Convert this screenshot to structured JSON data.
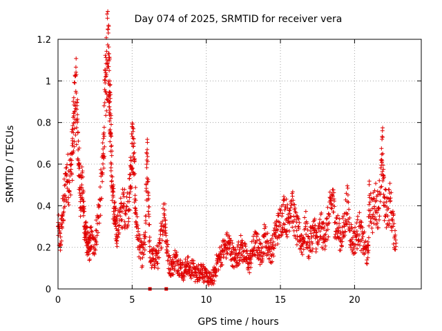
{
  "chart_data": {
    "type": "scatter",
    "title": "Day 074 of 2025, SRMTID for receiver vera",
    "xlabel": "GPS time / hours",
    "ylabel": "SRMTID / TECUs",
    "xlim": [
      0,
      24.5
    ],
    "ylim": [
      0,
      1.2
    ],
    "xticks": [
      0,
      5,
      10,
      15,
      20
    ],
    "xtick_labels": [
      "0",
      "5",
      "10",
      "15",
      "20"
    ],
    "yticks": [
      0,
      0.2,
      0.4,
      0.6,
      0.8,
      1.0,
      1.2
    ],
    "ytick_labels": [
      "0",
      "0.2",
      "0.4",
      "0.6",
      "0.8",
      "1",
      "1.2"
    ],
    "grid": true,
    "marker": "+",
    "color": "#e00000",
    "series": [
      {
        "name": "SRMTID",
        "x": [
          0.0,
          0.15,
          0.3,
          0.45,
          0.6,
          0.75,
          0.9,
          1.0,
          1.1,
          1.2,
          1.3,
          1.4,
          1.5,
          1.6,
          1.7,
          1.8,
          1.9,
          2.0,
          2.1,
          2.2,
          2.4,
          2.6,
          2.8,
          3.0,
          3.1,
          3.2,
          3.3,
          3.4,
          3.45,
          3.5,
          3.55,
          3.6,
          3.7,
          3.8,
          3.9,
          4.0,
          4.2,
          4.4,
          4.6,
          4.8,
          4.9,
          5.0,
          5.1,
          5.2,
          5.3,
          5.5,
          5.7,
          5.9,
          6.0,
          6.1,
          6.2,
          6.4,
          6.6,
          6.8,
          7.0,
          7.2,
          7.3,
          7.5,
          7.7,
          7.9,
          8.1,
          8.3,
          8.5,
          8.7,
          8.9,
          9.1,
          9.3,
          9.5,
          9.7,
          9.9,
          10.1,
          10.3,
          10.5,
          10.7,
          10.9,
          11.1,
          11.3,
          11.5,
          11.7,
          11.9,
          12.1,
          12.3,
          12.5,
          12.7,
          12.9,
          13.1,
          13.3,
          13.5,
          13.7,
          13.9,
          14.1,
          14.3,
          14.5,
          14.7,
          14.9,
          15.1,
          15.3,
          15.5,
          15.7,
          15.9,
          16.1,
          16.3,
          16.5,
          16.7,
          16.9,
          17.1,
          17.3,
          17.5,
          17.7,
          17.9,
          18.1,
          18.3,
          18.5,
          18.7,
          18.9,
          19.1,
          19.3,
          19.5,
          19.7,
          19.9,
          20.1,
          20.3,
          20.5,
          20.7,
          20.9,
          21.0,
          21.2,
          21.4,
          21.6,
          21.8,
          21.9,
          22.0,
          22.2,
          22.4,
          22.6,
          22.8
        ],
        "y": [
          0.3,
          0.22,
          0.35,
          0.45,
          0.55,
          0.52,
          0.6,
          0.7,
          0.85,
          0.95,
          0.8,
          0.6,
          0.45,
          0.5,
          0.42,
          0.3,
          0.25,
          0.22,
          0.18,
          0.25,
          0.2,
          0.28,
          0.4,
          0.55,
          0.75,
          0.95,
          1.1,
          1.13,
          1.05,
          0.9,
          0.82,
          0.6,
          0.45,
          0.35,
          0.3,
          0.28,
          0.35,
          0.4,
          0.38,
          0.42,
          0.55,
          0.7,
          0.65,
          0.45,
          0.3,
          0.2,
          0.15,
          0.25,
          0.65,
          0.45,
          0.15,
          0.14,
          0.16,
          0.15,
          0.3,
          0.38,
          0.22,
          0.12,
          0.1,
          0.15,
          0.12,
          0.1,
          0.08,
          0.12,
          0.09,
          0.1,
          0.07,
          0.08,
          0.1,
          0.06,
          0.05,
          0.04,
          0.06,
          0.12,
          0.15,
          0.18,
          0.2,
          0.22,
          0.18,
          0.14,
          0.16,
          0.2,
          0.18,
          0.15,
          0.12,
          0.18,
          0.22,
          0.2,
          0.16,
          0.25,
          0.22,
          0.18,
          0.2,
          0.28,
          0.3,
          0.35,
          0.38,
          0.32,
          0.42,
          0.35,
          0.28,
          0.25,
          0.22,
          0.3,
          0.2,
          0.25,
          0.28,
          0.22,
          0.3,
          0.25,
          0.28,
          0.35,
          0.45,
          0.32,
          0.28,
          0.24,
          0.3,
          0.42,
          0.28,
          0.22,
          0.25,
          0.3,
          0.24,
          0.2,
          0.15,
          0.45,
          0.35,
          0.42,
          0.38,
          0.55,
          0.65,
          0.4,
          0.38,
          0.42,
          0.3,
          0.22
        ],
        "zero_points_x": [
          6.2,
          7.3
        ]
      }
    ]
  }
}
